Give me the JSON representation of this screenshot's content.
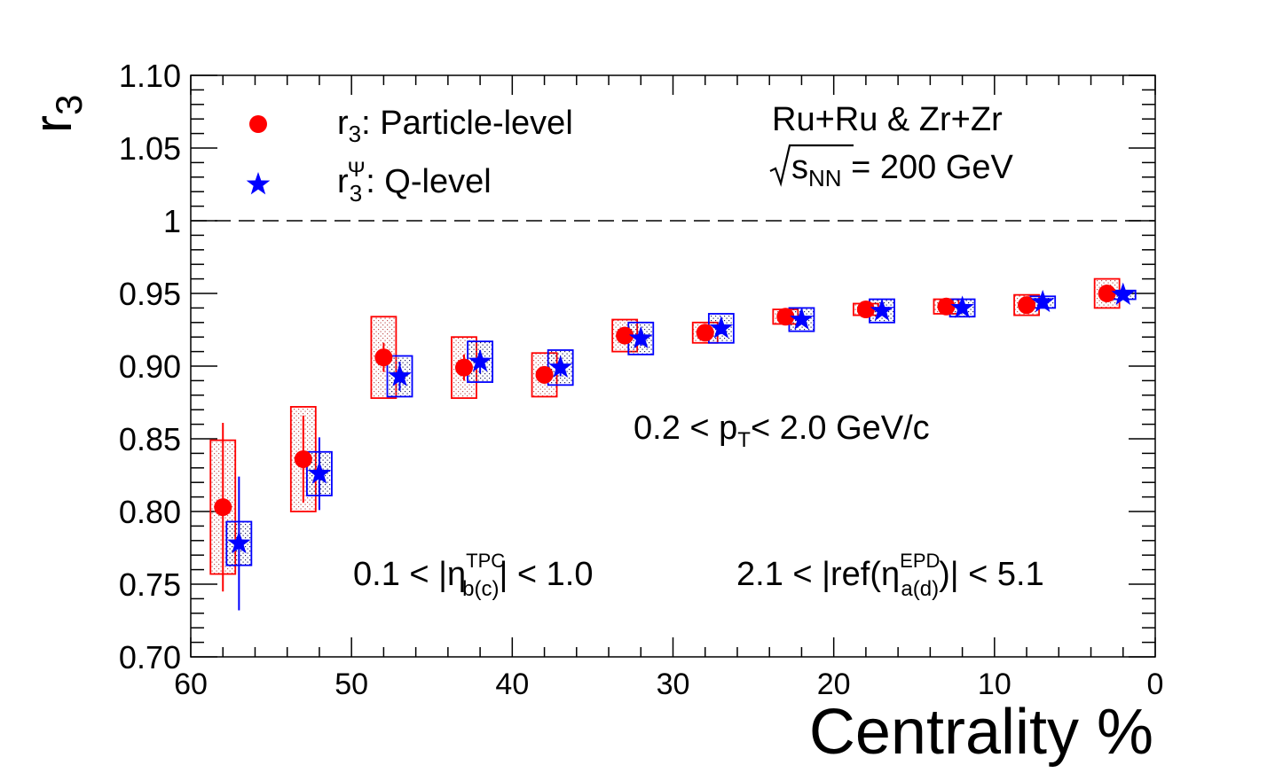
{
  "chart_data": {
    "type": "scatter",
    "xlabel": "Centrality %",
    "ylabel_main": "r",
    "ylabel_sub": "3",
    "xlim": [
      60,
      0
    ],
    "ylim": [
      0.7,
      1.1
    ],
    "x_ticks": [
      "60",
      "50",
      "40",
      "30",
      "20",
      "10",
      "0"
    ],
    "y_ticks": [
      "0.70",
      "0.75",
      "0.80",
      "0.85",
      "0.90",
      "0.95",
      "1",
      "1.05",
      "1.10"
    ],
    "reference_line": 1.0,
    "legend": {
      "particle": {
        "main": "r",
        "sub": "3",
        "text": ": Particle-level"
      },
      "q": {
        "main": "r",
        "sub": "3",
        "sup": "Ψ",
        "text": ": Q-level"
      }
    },
    "annotations": {
      "system": "Ru+Ru & Zr+Zr",
      "energy_s": "s",
      "energy_sub": "NN",
      "energy_text": " = 200 GeV",
      "pt_text1": "0.2 < p",
      "pt_sub": "T",
      "pt_text2": "< 2.0 GeV/c",
      "eta_text1": "0.1 < |η",
      "eta_sup": "TPC",
      "eta_sub": "b(c)",
      "eta_text2": "| < 1.0",
      "ref_text1": "2.1 < |ref(η",
      "ref_sup": "EPD",
      "ref_sub": "a(d)",
      "ref_text2": ")| < 5.1"
    },
    "series": [
      {
        "name": "r3: Particle-level",
        "marker": "circle",
        "color": "#ff0000",
        "x": [
          58,
          53,
          48,
          43,
          38,
          33,
          28,
          23,
          18,
          13,
          8,
          3
        ],
        "y": [
          0.803,
          0.836,
          0.906,
          0.899,
          0.894,
          0.921,
          0.923,
          0.934,
          0.939,
          0.941,
          0.942,
          0.95
        ],
        "stat_err": [
          0.058,
          0.03,
          0.01,
          0.009,
          0.006,
          0.005,
          0.004,
          0.003,
          0.002,
          0.002,
          0.002,
          0.002
        ],
        "sys_err": [
          0.046,
          0.036,
          0.028,
          0.021,
          0.015,
          0.011,
          0.007,
          0.005,
          0.004,
          0.005,
          0.007,
          0.01
        ]
      },
      {
        "name": "r3Ψ: Q-level",
        "marker": "star",
        "color": "#0000ff",
        "x": [
          57,
          52,
          47,
          42,
          37,
          32,
          27,
          22,
          17,
          12,
          7,
          2
        ],
        "y": [
          0.778,
          0.826,
          0.893,
          0.903,
          0.899,
          0.919,
          0.926,
          0.932,
          0.938,
          0.94,
          0.944,
          0.949
        ],
        "stat_err": [
          0.046,
          0.025,
          0.01,
          0.008,
          0.006,
          0.005,
          0.004,
          0.003,
          0.002,
          0.002,
          0.002,
          0.002
        ],
        "sys_err": [
          0.015,
          0.015,
          0.014,
          0.014,
          0.012,
          0.011,
          0.01,
          0.008,
          0.008,
          0.006,
          0.004,
          0.003
        ]
      }
    ]
  }
}
